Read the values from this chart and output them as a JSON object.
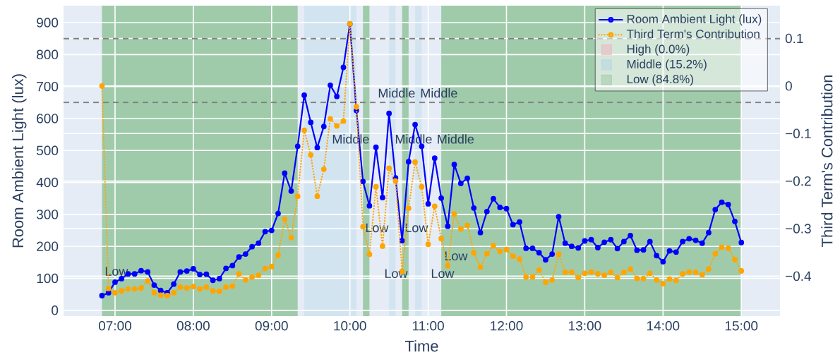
{
  "chart_data": {
    "type": "line",
    "xlabel": "Time",
    "ylabel": "Room Ambient Light (lux)",
    "y2label": "Third Term's Contribution",
    "x": [
      6.833,
      6.917,
      7,
      7.083,
      7.167,
      7.25,
      7.333,
      7.417,
      7.5,
      7.583,
      7.667,
      7.75,
      7.833,
      7.917,
      8,
      8.083,
      8.167,
      8.25,
      8.333,
      8.417,
      8.5,
      8.583,
      8.667,
      8.75,
      8.833,
      8.917,
      9,
      9.083,
      9.167,
      9.25,
      9.333,
      9.417,
      9.5,
      9.583,
      9.667,
      9.75,
      9.833,
      9.917,
      10,
      10.083,
      10.167,
      10.25,
      10.333,
      10.417,
      10.5,
      10.583,
      10.667,
      10.75,
      10.833,
      10.917,
      11,
      11.083,
      11.167,
      11.25,
      11.333,
      11.417,
      11.5,
      11.583,
      11.667,
      11.75,
      11.833,
      11.917,
      12,
      12.083,
      12.167,
      12.25,
      12.333,
      12.417,
      12.5,
      12.583,
      12.667,
      12.75,
      12.833,
      12.917,
      13,
      13.083,
      13.167,
      13.25,
      13.333,
      13.417,
      13.5,
      13.583,
      13.667,
      13.75,
      13.833,
      13.917,
      14,
      14.083,
      14.167,
      14.25,
      14.333,
      14.417,
      14.5,
      14.583,
      14.667,
      14.75,
      14.833,
      14.917,
      15
    ],
    "series": [
      {
        "name": "Room Ambient Light (lux)",
        "color": "#0000ff",
        "line_style": "solid",
        "values": [
          46,
          55,
          88,
          99,
          114,
          114,
          124,
          120,
          79,
          62,
          55,
          82,
          120,
          123,
          130,
          112,
          113,
          94,
          99,
          131,
          140,
          167,
          176,
          199,
          210,
          246,
          250,
          303,
          429,
          373,
          513,
          673,
          588,
          509,
          575,
          704,
          669,
          760,
          896,
          625,
          403,
          327,
          510,
          353,
          616,
          414,
          218,
          465,
          581,
          513,
          333,
          476,
          351,
          263,
          456,
          397,
          413,
          320,
          243,
          309,
          349,
          322,
          318,
          268,
          276,
          194,
          194,
          180,
          158,
          176,
          293,
          210,
          200,
          195,
          217,
          221,
          196,
          213,
          221,
          193,
          215,
          234,
          188,
          189,
          215,
          171,
          152,
          186,
          182,
          215,
          224,
          219,
          210,
          243,
          315,
          338,
          331,
          278,
          212
        ]
      },
      {
        "name": "Third Term's Contribution",
        "type": "line",
        "axis": "y2",
        "color": "#ffa500",
        "line_style": "dotted",
        "values": [
          0.0,
          -0.426,
          -0.435,
          -0.431,
          -0.427,
          -0.427,
          -0.425,
          -0.41,
          -0.435,
          -0.44,
          -0.441,
          -0.435,
          -0.423,
          -0.425,
          -0.422,
          -0.427,
          -0.423,
          -0.431,
          -0.432,
          -0.423,
          -0.421,
          -0.395,
          -0.408,
          -0.402,
          -0.398,
          -0.384,
          -0.38,
          -0.356,
          -0.28,
          -0.319,
          -0.232,
          -0.093,
          -0.145,
          -0.232,
          -0.175,
          -0.069,
          -0.084,
          -0.074,
          0.131,
          -0.044,
          -0.296,
          -0.354,
          -0.212,
          -0.337,
          -0.173,
          -0.2,
          -0.39,
          -0.257,
          -0.16,
          -0.212,
          -0.333,
          -0.253,
          -0.321,
          -0.378,
          -0.269,
          -0.301,
          -0.293,
          -0.351,
          -0.381,
          -0.353,
          -0.336,
          -0.348,
          -0.344,
          -0.358,
          -0.364,
          -0.402,
          -0.402,
          -0.387,
          -0.413,
          -0.408,
          -0.354,
          -0.392,
          -0.392,
          -0.403,
          -0.394,
          -0.391,
          -0.395,
          -0.398,
          -0.392,
          -0.403,
          -0.392,
          -0.385,
          -0.405,
          -0.405,
          -0.394,
          -0.408,
          -0.416,
          -0.406,
          -0.409,
          -0.395,
          -0.391,
          -0.392,
          -0.397,
          -0.385,
          -0.353,
          -0.339,
          -0.341,
          -0.365,
          -0.389
        ]
      },
      {
        "name": "High (0.0%)",
        "type": "area",
        "color": "#efb4c0",
        "values": [
          null,
          null,
          null,
          null,
          null,
          null,
          null,
          null,
          null,
          null,
          null,
          null,
          null,
          null,
          null,
          null,
          null,
          null,
          null,
          null,
          null,
          null,
          null,
          null,
          null,
          null,
          null,
          null,
          null,
          null,
          null,
          null,
          null,
          null,
          null,
          null,
          null,
          null,
          null,
          null,
          null,
          null,
          null,
          null,
          null,
          null,
          null,
          null,
          null,
          null,
          null,
          null,
          null,
          null,
          null,
          null,
          null,
          null,
          null,
          null,
          null,
          null,
          null,
          null,
          null,
          null,
          null,
          null,
          null,
          null,
          null,
          null,
          null,
          null,
          null,
          null,
          null,
          null,
          null,
          null,
          null,
          null,
          null,
          null,
          null,
          null,
          null,
          null,
          null,
          null,
          null,
          null,
          null,
          null,
          null,
          null,
          null,
          null,
          null
        ]
      },
      {
        "name": "Middle (15.2%)",
        "type": "area",
        "color": "#b4d5e5",
        "values": [
          null,
          null,
          null,
          null,
          null,
          null,
          null,
          null,
          null,
          null,
          null,
          null,
          null,
          null,
          null,
          null,
          null,
          null,
          null,
          null,
          null,
          null,
          null,
          null,
          null,
          null,
          null,
          null,
          null,
          null,
          null,
          null,
          null,
          null,
          null,
          null,
          null,
          null,
          null,
          null,
          null,
          null,
          null,
          null,
          null,
          null,
          null,
          null,
          null,
          null,
          null,
          null,
          null,
          null,
          null,
          null,
          null,
          null,
          null,
          null,
          null,
          null,
          null,
          null,
          null,
          null,
          null,
          null,
          null,
          null,
          null,
          null,
          null,
          null,
          null,
          null,
          null,
          null,
          null,
          null,
          null,
          null,
          null,
          null,
          null,
          null,
          null,
          null,
          null,
          null,
          null,
          null,
          null,
          null,
          null,
          null,
          null,
          null,
          null
        ]
      },
      {
        "name": "Low (84.8%)",
        "type": "area",
        "color": "#a6c9aa",
        "values": [
          null,
          null,
          null,
          null,
          null,
          null,
          null,
          null,
          null,
          null,
          null,
          null,
          null,
          null,
          null,
          null,
          null,
          null,
          null,
          null,
          null,
          null,
          null,
          null,
          null,
          null,
          null,
          null,
          null,
          null,
          null,
          null,
          null,
          null,
          null,
          null,
          null,
          null,
          null,
          null,
          null,
          null,
          null,
          null,
          null,
          null,
          null,
          null,
          null,
          null,
          null,
          null,
          null,
          null,
          null,
          null,
          null,
          null,
          null,
          null,
          null,
          null,
          null,
          null,
          null,
          null,
          null,
          null,
          null,
          null,
          null,
          null,
          null,
          null,
          null,
          null,
          null,
          null,
          null,
          null,
          null,
          null,
          null,
          null,
          null,
          null,
          null,
          null,
          null,
          null,
          null,
          null,
          null,
          null,
          null,
          null,
          null,
          null,
          null
        ]
      }
    ],
    "xlim": [
      6.342,
      15.494
    ],
    "xticks": [
      {
        "value": 7,
        "label": "07:00"
      },
      {
        "value": 8,
        "label": "08:00"
      },
      {
        "value": 9,
        "label": "09:00"
      },
      {
        "value": 10,
        "label": "10:00"
      },
      {
        "value": 11,
        "label": "11:00"
      },
      {
        "value": 12,
        "label": "12:00"
      },
      {
        "value": 13,
        "label": "13:00"
      },
      {
        "value": 14,
        "label": "14:00"
      },
      {
        "value": 15,
        "label": "15:00"
      }
    ],
    "ylim": [
      -18,
      953
    ],
    "yticks": [
      0,
      100,
      200,
      300,
      400,
      500,
      600,
      700,
      800,
      900
    ],
    "y2lim": [
      -0.484,
      0.169
    ],
    "y2ticks": [
      {
        "value": -0.4,
        "label": "−0.4"
      },
      {
        "value": -0.3,
        "label": "−0.3"
      },
      {
        "value": -0.2,
        "label": "−0.2"
      },
      {
        "value": -0.1,
        "label": "−0.1"
      },
      0,
      0.1
    ],
    "bands": [
      {
        "axis": "x",
        "from": 6.833,
        "to": 9.333,
        "color": "#a0cbab"
      },
      {
        "axis": "x",
        "from": 9.417,
        "to": 10.083,
        "color": "#d3e4f1"
      },
      {
        "axis": "x",
        "from": 10.167,
        "to": 10.25,
        "color": "#a0cbab"
      },
      {
        "axis": "x",
        "from": 10.5,
        "to": 10.583,
        "color": "#d3e4f1"
      },
      {
        "axis": "x",
        "from": 10.667,
        "to": 10.75,
        "color": "#a0cbab"
      },
      {
        "axis": "x",
        "from": 10.833,
        "to": 10.917,
        "color": "#d3e4f1"
      },
      {
        "axis": "x",
        "from": 11.167,
        "to": 15,
        "color": "#a0cbab"
      }
    ],
    "ref_lines": [
      {
        "axis": "y",
        "value": 850,
        "color": "#808080",
        "line_style": "dashed"
      },
      {
        "axis": "y",
        "value": 650,
        "color": "#808080",
        "line_style": "dashed"
      }
    ],
    "annotations": [
      {
        "text": "Low",
        "x": 6.865,
        "y": 122
      },
      {
        "text": "Middle",
        "x": 9.768,
        "y": 536
      },
      "Middle",
      {
        "text": "Middle",
        "x": 10.895,
        "y": 680
      },
      {
        "text": "Middle",
        "x": 10.571,
        "y": 536
      },
      "Middle",
      {
        "text": "Low",
        "x": 10.192,
        "y": 258
      },
      {
        "text": "Low",
        "x": 10.697,
        "y": 258
      },
      {
        "text": "Low",
        "x": 11.202,
        "y": 170
      },
      "Low",
      "Low"
    ],
    "grid": true,
    "legend": "top right",
    "marker": "circle"
  }
}
